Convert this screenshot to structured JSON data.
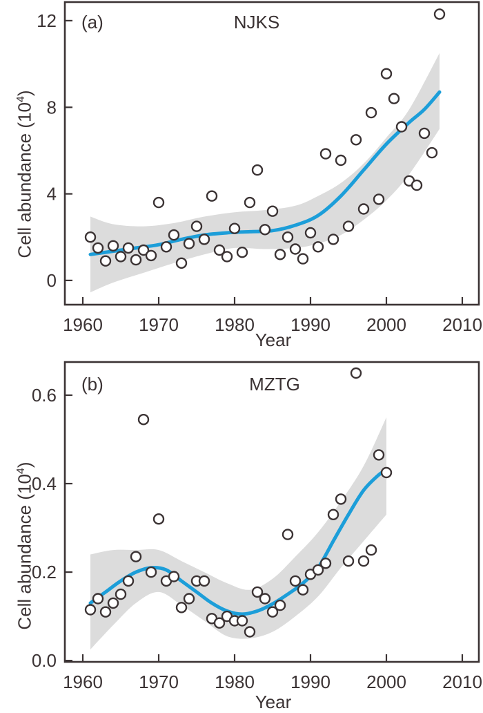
{
  "colors": {
    "axis": "#3b3334",
    "trend_blue": "#1c9ed9",
    "band_gray": "#dcdcdc",
    "point_fill": "#ffffff",
    "background": "#ffffff"
  },
  "axes": {
    "x_title": "Year",
    "y_title_prefix": "Cell abundance (10",
    "y_title_sup": "4",
    "y_title_suffix": ")"
  },
  "chart_data": [
    {
      "type": "scatter",
      "panel_label": "(a)",
      "title": "NJKS",
      "xlabel": "Year",
      "ylabel": "Cell abundance (10^4)",
      "xlim": [
        1957.64,
        2012.18
      ],
      "ylim": [
        -1.12,
        12.86
      ],
      "x_ticks": [
        1960,
        1970,
        1980,
        1990,
        2000,
        2010
      ],
      "y_ticks": [
        0,
        4,
        8,
        12
      ],
      "y_tick_labels": [
        "0",
        "4",
        "8",
        "12"
      ],
      "grid": false,
      "legend": "none",
      "points": [
        [
          1961,
          2.0
        ],
        [
          1962,
          1.5
        ],
        [
          1963,
          0.9
        ],
        [
          1964,
          1.6
        ],
        [
          1965,
          1.1
        ],
        [
          1966,
          1.5
        ],
        [
          1967,
          0.95
        ],
        [
          1968,
          1.4
        ],
        [
          1969,
          1.15
        ],
        [
          1970,
          3.6
        ],
        [
          1971,
          1.55
        ],
        [
          1972,
          2.1
        ],
        [
          1973,
          0.8
        ],
        [
          1974,
          1.7
        ],
        [
          1975,
          2.5
        ],
        [
          1976,
          1.9
        ],
        [
          1977,
          3.9
        ],
        [
          1978,
          1.4
        ],
        [
          1979,
          1.1
        ],
        [
          1980,
          2.4
        ],
        [
          1981,
          1.3
        ],
        [
          1982,
          3.6
        ],
        [
          1983,
          5.1
        ],
        [
          1984,
          2.35
        ],
        [
          1985,
          3.2
        ],
        [
          1986,
          1.2
        ],
        [
          1987,
          2.0
        ],
        [
          1988,
          1.45
        ],
        [
          1989,
          1.0
        ],
        [
          1990,
          2.2
        ],
        [
          1991,
          1.55
        ],
        [
          1992,
          5.85
        ],
        [
          1993,
          1.9
        ],
        [
          1994,
          5.55
        ],
        [
          1995,
          2.5
        ],
        [
          1996,
          6.5
        ],
        [
          1997,
          3.3
        ],
        [
          1998,
          7.75
        ],
        [
          1999,
          3.75
        ],
        [
          2000,
          9.55
        ],
        [
          2001,
          8.4
        ],
        [
          2002,
          7.1
        ],
        [
          2003,
          4.6
        ],
        [
          2004,
          4.4
        ],
        [
          2005,
          6.8
        ],
        [
          2006,
          5.9
        ],
        [
          2007,
          12.3
        ]
      ],
      "trend": [
        [
          1961,
          1.2
        ],
        [
          1964,
          1.35
        ],
        [
          1967,
          1.5
        ],
        [
          1970,
          1.65
        ],
        [
          1973,
          1.9
        ],
        [
          1976,
          2.1
        ],
        [
          1979,
          2.2
        ],
        [
          1982,
          2.25
        ],
        [
          1985,
          2.3
        ],
        [
          1988,
          2.55
        ],
        [
          1991,
          3.0
        ],
        [
          1994,
          3.9
        ],
        [
          1997,
          5.1
        ],
        [
          2000,
          6.3
        ],
        [
          2003,
          7.3
        ],
        [
          2005,
          7.9
        ],
        [
          2007,
          8.7
        ]
      ],
      "band": {
        "years": [
          1961,
          1964,
          1968,
          1972,
          1976,
          1980,
          1984,
          1988,
          1991,
          1994,
          1997,
          2000,
          2003,
          2007
        ],
        "upper": [
          2.95,
          2.6,
          2.5,
          2.65,
          2.95,
          3.15,
          3.25,
          3.45,
          3.9,
          4.5,
          5.4,
          6.6,
          7.9,
          10.5
        ],
        "lower": [
          -0.55,
          -0.1,
          0.35,
          0.8,
          1.2,
          1.5,
          1.45,
          1.5,
          1.7,
          2.1,
          2.8,
          3.7,
          4.9,
          7.0
        ]
      }
    },
    {
      "type": "scatter",
      "panel_label": "(b)",
      "title": "MZTG",
      "xlabel": "Year",
      "ylabel": "Cell abundance (10^4)",
      "xlim": [
        1957.64,
        2012.18
      ],
      "ylim": [
        -0.003,
        0.675
      ],
      "x_ticks": [
        1960,
        1970,
        1980,
        1990,
        2000,
        2010
      ],
      "y_ticks": [
        0,
        0.2,
        0.4,
        0.6
      ],
      "y_tick_labels": [
        "0.0",
        "0.2",
        "0.4",
        "0.6"
      ],
      "grid": false,
      "legend": "none",
      "points": [
        [
          1961,
          0.115
        ],
        [
          1962,
          0.14
        ],
        [
          1963,
          0.11
        ],
        [
          1964,
          0.13
        ],
        [
          1965,
          0.15
        ],
        [
          1966,
          0.18
        ],
        [
          1967,
          0.235
        ],
        [
          1968,
          0.545
        ],
        [
          1969,
          0.2
        ],
        [
          1970,
          0.32
        ],
        [
          1971,
          0.18
        ],
        [
          1972,
          0.19
        ],
        [
          1973,
          0.12
        ],
        [
          1974,
          0.14
        ],
        [
          1975,
          0.18
        ],
        [
          1976,
          0.18
        ],
        [
          1977,
          0.095
        ],
        [
          1978,
          0.085
        ],
        [
          1979,
          0.1
        ],
        [
          1980,
          0.09
        ],
        [
          1981,
          0.09
        ],
        [
          1982,
          0.065
        ],
        [
          1983,
          0.155
        ],
        [
          1984,
          0.14
        ],
        [
          1985,
          0.11
        ],
        [
          1986,
          0.125
        ],
        [
          1987,
          0.285
        ],
        [
          1988,
          0.18
        ],
        [
          1989,
          0.16
        ],
        [
          1990,
          0.195
        ],
        [
          1991,
          0.205
        ],
        [
          1992,
          0.22
        ],
        [
          1993,
          0.33
        ],
        [
          1994,
          0.365
        ],
        [
          1995,
          0.225
        ],
        [
          1996,
          0.65
        ],
        [
          1997,
          0.225
        ],
        [
          1998,
          0.25
        ],
        [
          1999,
          0.465
        ],
        [
          2000,
          0.425
        ]
      ],
      "trend": [
        [
          1961,
          0.13
        ],
        [
          1963,
          0.155
        ],
        [
          1965,
          0.18
        ],
        [
          1967,
          0.2
        ],
        [
          1969,
          0.21
        ],
        [
          1971,
          0.205
        ],
        [
          1973,
          0.18
        ],
        [
          1975,
          0.155
        ],
        [
          1977,
          0.13
        ],
        [
          1979,
          0.112
        ],
        [
          1981,
          0.105
        ],
        [
          1983,
          0.112
        ],
        [
          1985,
          0.128
        ],
        [
          1987,
          0.15
        ],
        [
          1989,
          0.175
        ],
        [
          1991,
          0.21
        ],
        [
          1993,
          0.27
        ],
        [
          1995,
          0.33
        ],
        [
          1997,
          0.385
        ],
        [
          1999,
          0.42
        ],
        [
          2000,
          0.43
        ]
      ],
      "band": {
        "years": [
          1961,
          1964,
          1967,
          1970,
          1973,
          1976,
          1979,
          1982,
          1985,
          1988,
          1991,
          1994,
          1997,
          2000
        ],
        "upper": [
          0.24,
          0.25,
          0.25,
          0.25,
          0.225,
          0.2,
          0.175,
          0.16,
          0.185,
          0.235,
          0.29,
          0.36,
          0.44,
          0.55
        ],
        "lower": [
          0.025,
          0.08,
          0.13,
          0.155,
          0.125,
          0.09,
          0.055,
          0.05,
          0.065,
          0.1,
          0.145,
          0.21,
          0.27,
          0.33
        ]
      }
    }
  ]
}
